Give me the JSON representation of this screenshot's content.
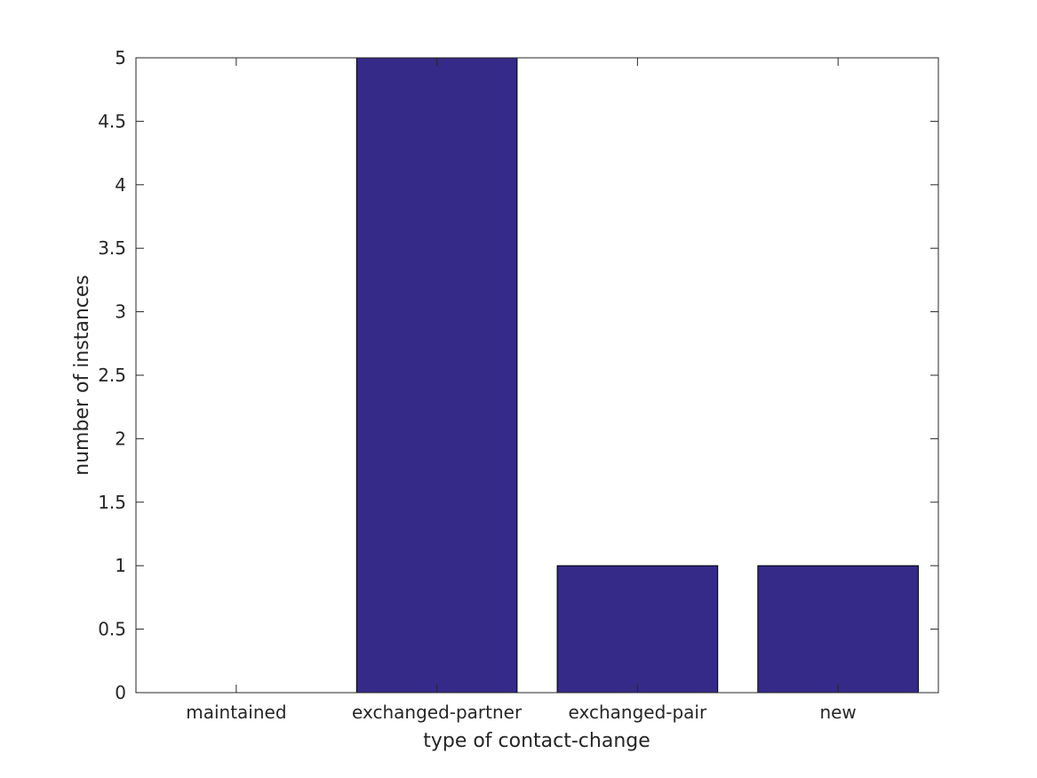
{
  "chart_data": {
    "type": "bar",
    "title": "",
    "xlabel": "type of contact-change",
    "ylabel": "number of instances",
    "categories": [
      "maintained",
      "exchanged-partner",
      "exchanged-pair",
      "new"
    ],
    "values": [
      0,
      5,
      1,
      1
    ],
    "ylim": [
      0,
      5
    ],
    "yticks": [
      0,
      0.5,
      1,
      1.5,
      2,
      2.5,
      3,
      3.5,
      4,
      4.5,
      5
    ],
    "ytick_labels": [
      "0",
      "0.5",
      "1",
      "1.5",
      "2",
      "2.5",
      "3",
      "3.5",
      "4",
      "4.5",
      "5"
    ],
    "grid": false,
    "bar_color": "#352a87",
    "bar_edge_color": "#000000",
    "axis_color": "#262626"
  }
}
